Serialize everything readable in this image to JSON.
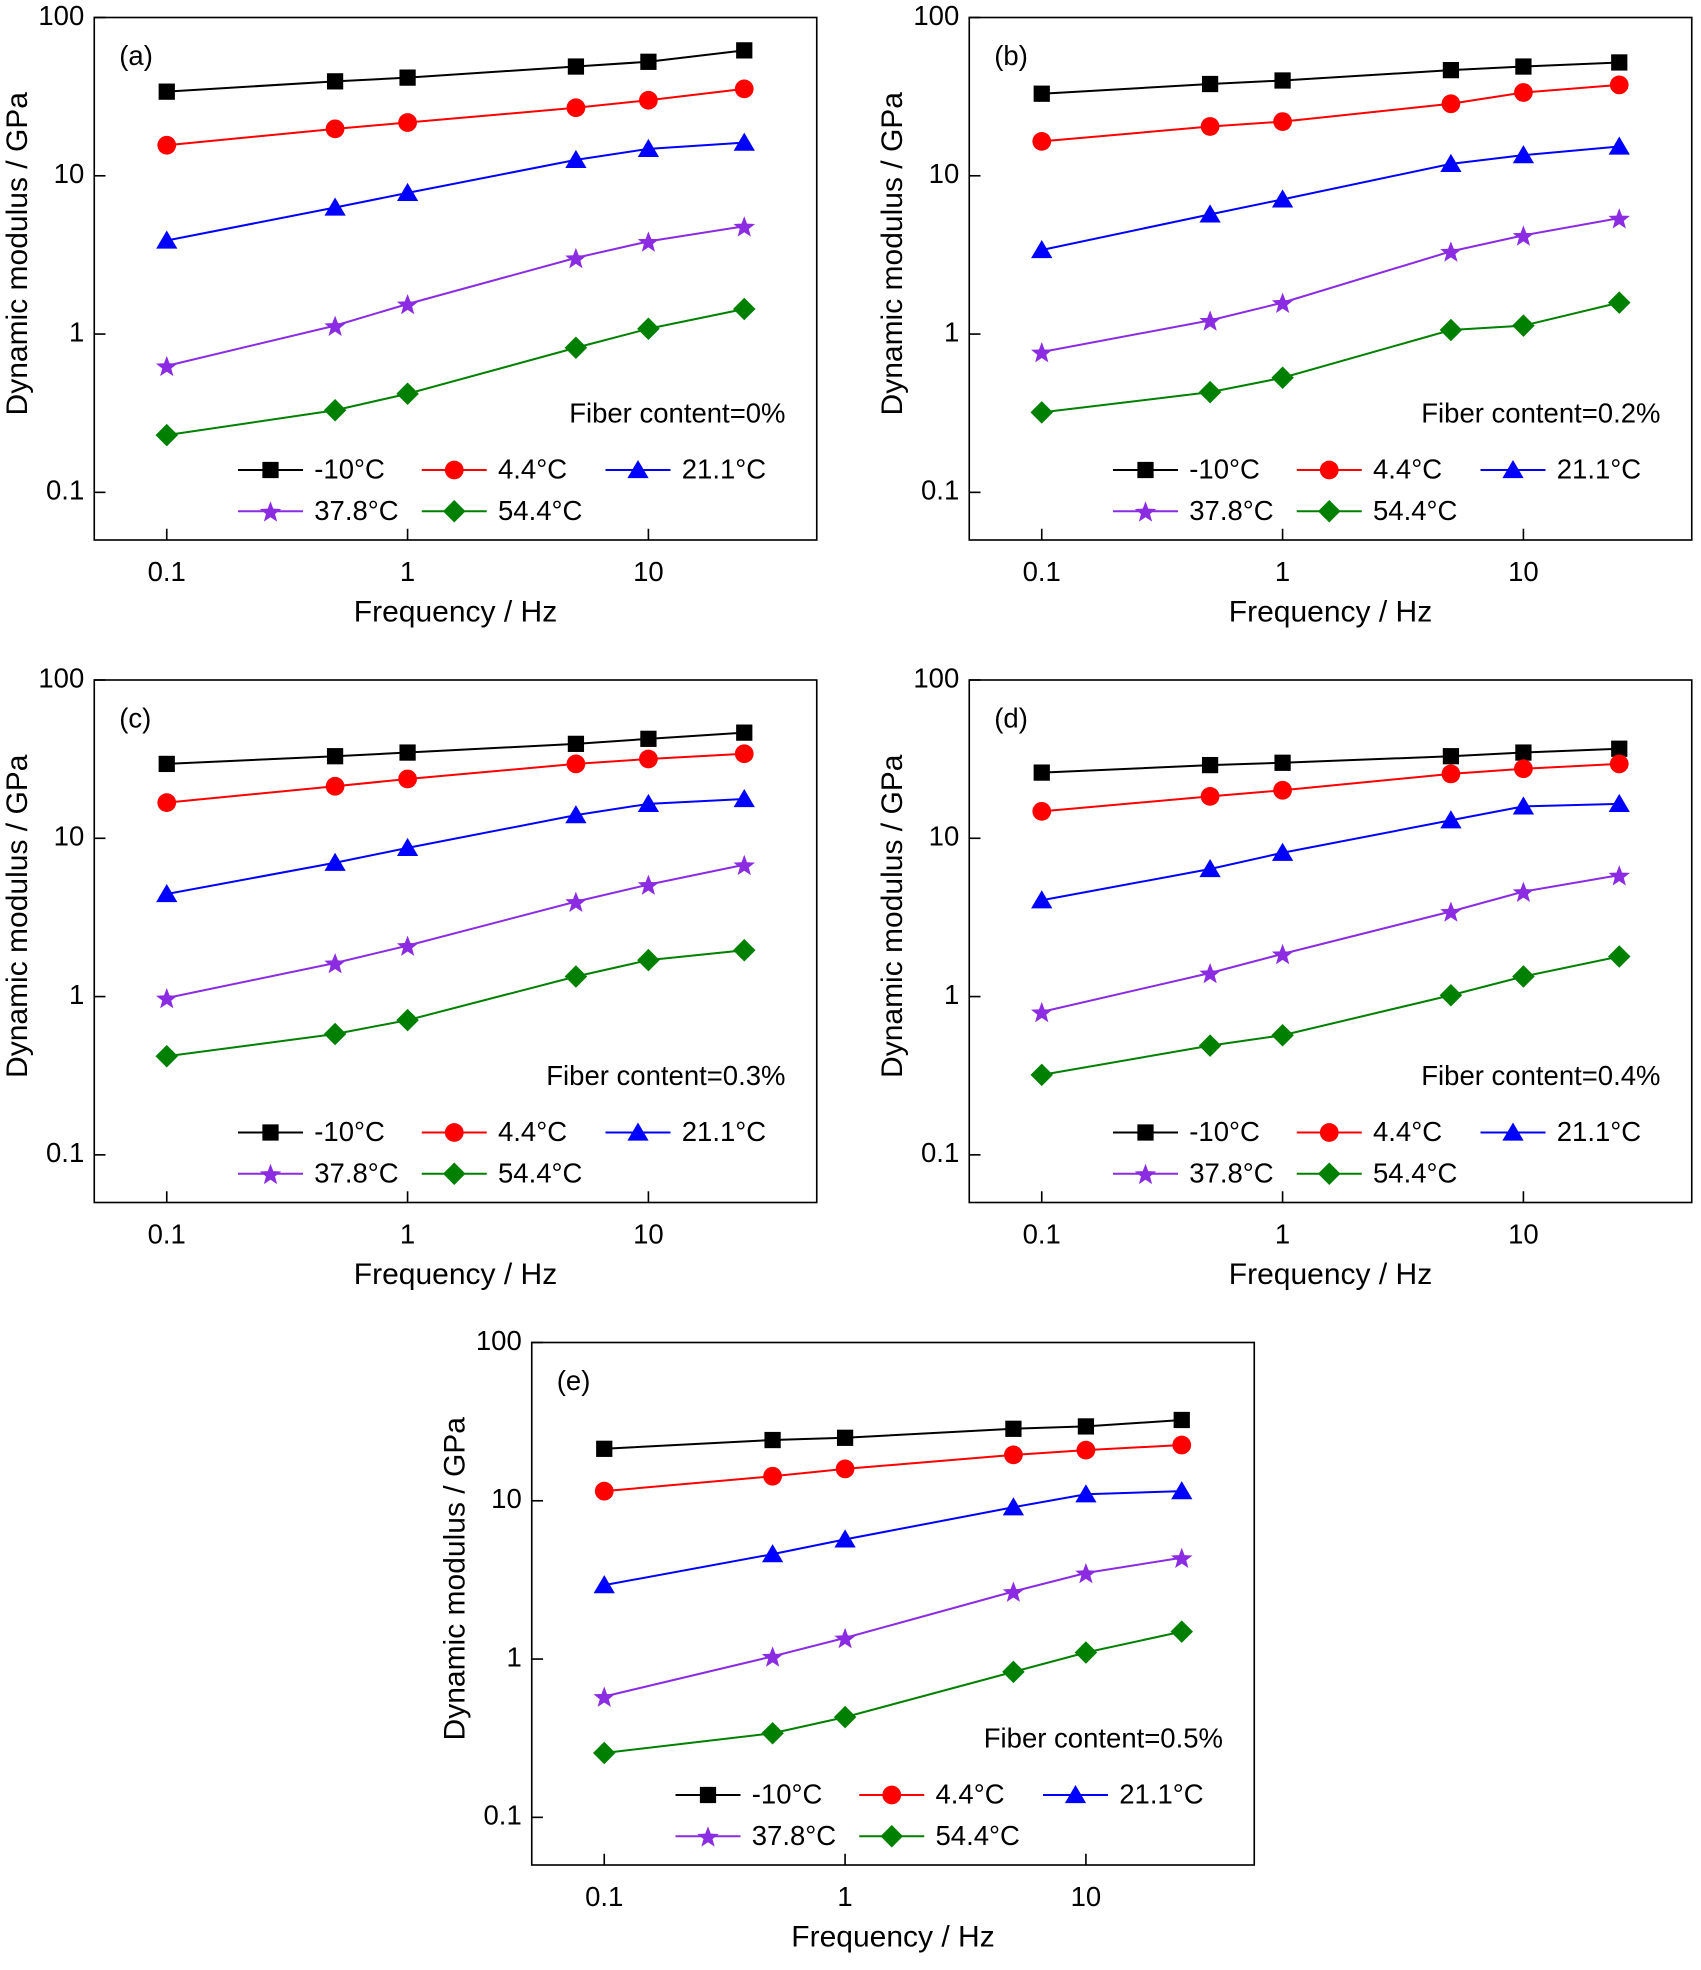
{
  "chart_data": [
    {
      "type": "line",
      "annotation": "(a)",
      "note": "Fiber content=0%",
      "xlabel": "Frequency / Hz",
      "ylabel": "Dynamic modulus / GPa",
      "xscale": "log",
      "yscale": "log",
      "xlim": [
        0.05,
        50
      ],
      "ylim": [
        0.05,
        100
      ],
      "xticks": [
        0.1,
        1,
        10
      ],
      "yticks": [
        0.1,
        1,
        10,
        100
      ],
      "legend": "lower right",
      "x": [
        0.1,
        0.5,
        1,
        5,
        10,
        25
      ],
      "series": [
        {
          "name": "-10°C",
          "color": "#000000",
          "marker": "square",
          "values": [
            34,
            39.5,
            41.7,
            49,
            52.5,
            62
          ]
        },
        {
          "name": "4.4°C",
          "color": "#ff0000",
          "marker": "circle",
          "values": [
            15.6,
            19.8,
            21.7,
            26.9,
            30,
            35.4
          ]
        },
        {
          "name": "21.1°C",
          "color": "#0000ff",
          "marker": "triangle",
          "values": [
            3.9,
            6.3,
            7.8,
            12.6,
            14.8,
            16.2
          ]
        },
        {
          "name": "37.8°C",
          "color": "#8b2be2",
          "marker": "star",
          "values": [
            0.63,
            1.13,
            1.55,
            3.03,
            3.85,
            4.8
          ]
        },
        {
          "name": "54.4°C",
          "color": "#008000",
          "marker": "diamond",
          "values": [
            0.23,
            0.33,
            0.42,
            0.82,
            1.08,
            1.44
          ]
        }
      ]
    },
    {
      "type": "line",
      "annotation": "(b)",
      "note": "Fiber content=0.2%",
      "xlabel": "Frequency / Hz",
      "ylabel": "Dynamic modulus / GPa",
      "xscale": "log",
      "yscale": "log",
      "xlim": [
        0.05,
        50
      ],
      "ylim": [
        0.05,
        100
      ],
      "xticks": [
        0.1,
        1,
        10
      ],
      "yticks": [
        0.1,
        1,
        10,
        100
      ],
      "legend": "lower right",
      "x": [
        0.1,
        0.5,
        1,
        5,
        10,
        25
      ],
      "series": [
        {
          "name": "-10°C",
          "color": "#000000",
          "marker": "square",
          "values": [
            33,
            38,
            40,
            46.5,
            49,
            52
          ]
        },
        {
          "name": "4.4°C",
          "color": "#ff0000",
          "marker": "circle",
          "values": [
            16.5,
            20.5,
            22,
            28.5,
            33.6,
            37.5
          ]
        },
        {
          "name": "21.1°C",
          "color": "#0000ff",
          "marker": "triangle",
          "values": [
            3.4,
            5.7,
            7.1,
            11.9,
            13.5,
            15.3
          ]
        },
        {
          "name": "37.8°C",
          "color": "#8b2be2",
          "marker": "star",
          "values": [
            0.77,
            1.22,
            1.58,
            3.33,
            4.2,
            5.4
          ]
        },
        {
          "name": "54.4°C",
          "color": "#008000",
          "marker": "diamond",
          "values": [
            0.32,
            0.43,
            0.53,
            1.06,
            1.13,
            1.58
          ]
        }
      ]
    },
    {
      "type": "line",
      "annotation": "(c)",
      "note": "Fiber content=0.3%",
      "xlabel": "Frequency / Hz",
      "ylabel": "Dynamic modulus / GPa",
      "xscale": "log",
      "yscale": "log",
      "xlim": [
        0.05,
        50
      ],
      "ylim": [
        0.05,
        100
      ],
      "xticks": [
        0.1,
        1,
        10
      ],
      "yticks": [
        0.1,
        1,
        10,
        100
      ],
      "legend": "lower right",
      "x": [
        0.1,
        0.5,
        1,
        5,
        10,
        25
      ],
      "series": [
        {
          "name": "-10°C",
          "color": "#000000",
          "marker": "square",
          "values": [
            29.5,
            33,
            34.8,
            39.5,
            42.5,
            46.5
          ]
        },
        {
          "name": "4.4°C",
          "color": "#ff0000",
          "marker": "circle",
          "values": [
            16.8,
            21.3,
            23.7,
            29.5,
            31.7,
            34.2
          ]
        },
        {
          "name": "21.1°C",
          "color": "#0000ff",
          "marker": "triangle",
          "values": [
            4.45,
            7,
            8.7,
            14,
            16.5,
            17.7
          ]
        },
        {
          "name": "37.8°C",
          "color": "#8b2be2",
          "marker": "star",
          "values": [
            0.98,
            1.63,
            2.1,
            3.98,
            5.1,
            6.8
          ]
        },
        {
          "name": "54.4°C",
          "color": "#008000",
          "marker": "diamond",
          "values": [
            0.42,
            0.58,
            0.71,
            1.34,
            1.7,
            1.96
          ]
        }
      ]
    },
    {
      "type": "line",
      "annotation": "(d)",
      "note": "Fiber content=0.4%",
      "xlabel": "Frequency / Hz",
      "ylabel": "Dynamic modulus / GPa",
      "xscale": "log",
      "yscale": "log",
      "xlim": [
        0.05,
        50
      ],
      "ylim": [
        0.05,
        100
      ],
      "xticks": [
        0.1,
        1,
        10
      ],
      "yticks": [
        0.1,
        1,
        10,
        100
      ],
      "legend": "lower right",
      "x": [
        0.1,
        0.5,
        1,
        5,
        10,
        25
      ],
      "series": [
        {
          "name": "-10°C",
          "color": "#000000",
          "marker": "square",
          "values": [
            26,
            29,
            30,
            33,
            34.8,
            36.8
          ]
        },
        {
          "name": "4.4°C",
          "color": "#ff0000",
          "marker": "circle",
          "values": [
            14.8,
            18.4,
            20.1,
            25.5,
            27.5,
            29.5
          ]
        },
        {
          "name": "21.1°C",
          "color": "#0000ff",
          "marker": "triangle",
          "values": [
            4.06,
            6.4,
            8.1,
            13,
            15.9,
            16.5
          ]
        },
        {
          "name": "37.8°C",
          "color": "#8b2be2",
          "marker": "star",
          "values": [
            0.8,
            1.41,
            1.86,
            3.45,
            4.6,
            5.85
          ]
        },
        {
          "name": "54.4°C",
          "color": "#008000",
          "marker": "diamond",
          "values": [
            0.32,
            0.49,
            0.57,
            1.02,
            1.34,
            1.79
          ]
        }
      ]
    },
    {
      "type": "line",
      "annotation": "(e)",
      "note": "Fiber content=0.5%",
      "xlabel": "Frequency / Hz",
      "ylabel": "Dynamic modulus / GPa",
      "xscale": "log",
      "yscale": "log",
      "xlim": [
        0.05,
        50
      ],
      "ylim": [
        0.05,
        100
      ],
      "xticks": [
        0.1,
        1,
        10
      ],
      "yticks": [
        0.1,
        1,
        10,
        100
      ],
      "legend": "lower right",
      "x": [
        0.1,
        0.5,
        1,
        5,
        10,
        25
      ],
      "series": [
        {
          "name": "-10°C",
          "color": "#000000",
          "marker": "square",
          "values": [
            21.3,
            24.2,
            25,
            28.5,
            29.5,
            32.4
          ]
        },
        {
          "name": "4.4°C",
          "color": "#ff0000",
          "marker": "circle",
          "values": [
            11.5,
            14.3,
            15.9,
            19.5,
            20.9,
            22.5
          ]
        },
        {
          "name": "21.1°C",
          "color": "#0000ff",
          "marker": "triangle",
          "values": [
            2.93,
            4.6,
            5.7,
            9.1,
            11,
            11.5
          ]
        },
        {
          "name": "37.8°C",
          "color": "#8b2be2",
          "marker": "star",
          "values": [
            0.58,
            1.04,
            1.36,
            2.67,
            3.5,
            4.37
          ]
        },
        {
          "name": "54.4°C",
          "color": "#008000",
          "marker": "diamond",
          "values": [
            0.255,
            0.34,
            0.43,
            0.83,
            1.1,
            1.49
          ]
        }
      ]
    }
  ]
}
